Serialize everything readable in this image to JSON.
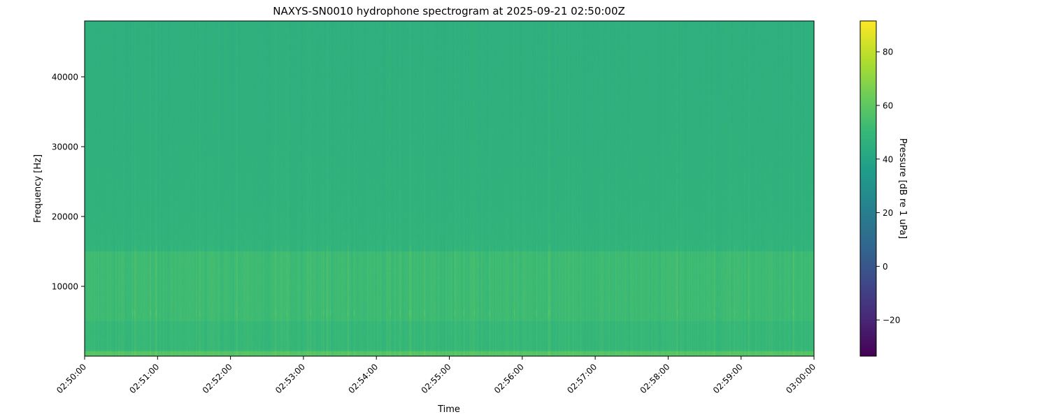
{
  "chart_data": {
    "type": "heatmap",
    "title": "NAXYS-SN0010 hydrophone spectrogram at 2025-09-21 02:50:00Z",
    "xlabel": "Time",
    "ylabel": "Frequency [Hz]",
    "x_ticks": [
      "02:50:00",
      "02:51:00",
      "02:52:00",
      "02:53:00",
      "02:54:00",
      "02:55:00",
      "02:56:00",
      "02:57:00",
      "02:58:00",
      "02:59:00",
      "03:00:00"
    ],
    "y_ticks": [
      10000,
      20000,
      30000,
      40000
    ],
    "ylim": [
      0,
      48000
    ],
    "colorbar": {
      "label": "Pressure [dB re 1 uPa]",
      "ticks": [
        -20,
        0,
        20,
        40,
        60,
        80
      ],
      "tick_labels": [
        "−20",
        "0",
        "20",
        "40",
        "60",
        "80"
      ],
      "range": [
        -33.5,
        91.5
      ],
      "colormap": "viridis"
    },
    "typical_levels_db": {
      "above_15000_hz": 45,
      "below_15000_hz": 52,
      "below_1000_hz": 58
    },
    "grid": false
  }
}
